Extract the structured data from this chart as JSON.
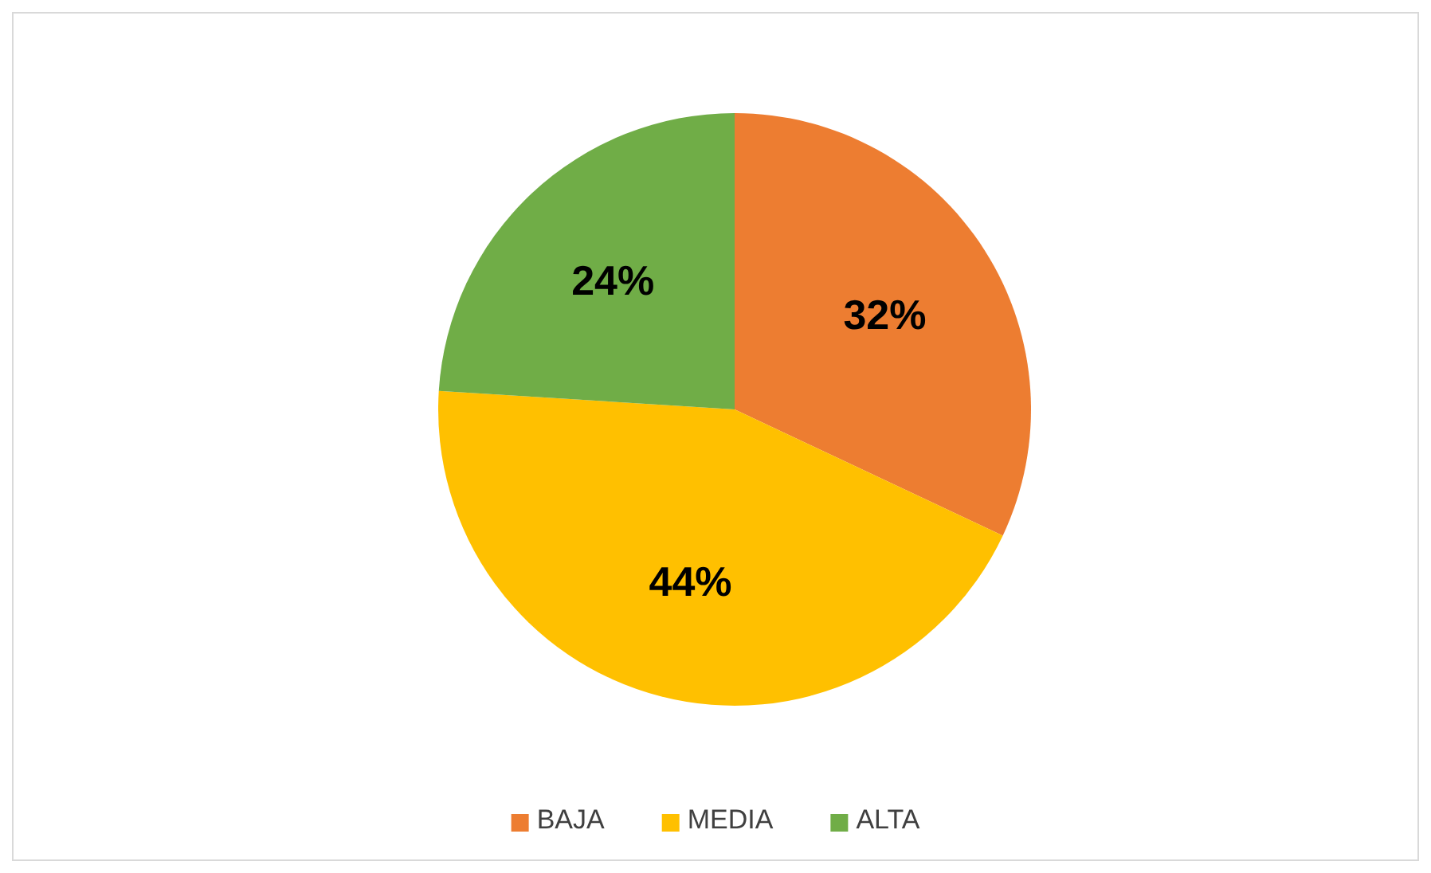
{
  "chart_data": {
    "type": "pie",
    "categories": [
      "BAJA",
      "MEDIA",
      "ALTA"
    ],
    "values": [
      32,
      44,
      24
    ],
    "colors": [
      "#ed7d31",
      "#ffc000",
      "#70ad47"
    ],
    "value_labels": [
      "32%",
      "44%",
      "24%"
    ],
    "legend": "bottom"
  }
}
